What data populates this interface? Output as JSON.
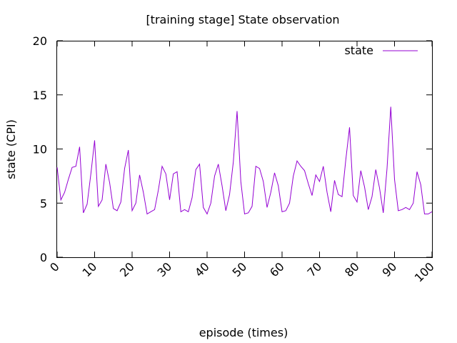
{
  "chart_data": {
    "type": "line",
    "title": "[training stage] State observation",
    "xlabel": "episode (times)",
    "ylabel": "state (CPI)",
    "xlim": [
      0,
      100
    ],
    "ylim": [
      0,
      20
    ],
    "xticks": [
      0,
      10,
      20,
      30,
      40,
      50,
      60,
      70,
      80,
      90,
      100
    ],
    "xtick_labels": [
      "0",
      "10",
      "20",
      "30",
      "40",
      "50",
      "60",
      "70",
      "80",
      "90",
      "100"
    ],
    "yticks": [
      0,
      5,
      10,
      15,
      20
    ],
    "ytick_labels": [
      "0",
      "5",
      "10",
      "15",
      "20"
    ],
    "grid": false,
    "legend_position": "top-right",
    "series": [
      {
        "name": "state",
        "color": "#9400d3",
        "x": [
          0,
          1,
          2,
          3,
          4,
          5,
          6,
          7,
          8,
          9,
          10,
          11,
          12,
          13,
          14,
          15,
          16,
          17,
          18,
          19,
          20,
          21,
          22,
          23,
          24,
          25,
          26,
          27,
          28,
          29,
          30,
          31,
          32,
          33,
          34,
          35,
          36,
          37,
          38,
          39,
          40,
          41,
          42,
          43,
          44,
          45,
          46,
          47,
          48,
          49,
          50,
          51,
          52,
          53,
          54,
          55,
          56,
          57,
          58,
          59,
          60,
          61,
          62,
          63,
          64,
          65,
          66,
          67,
          68,
          69,
          70,
          71,
          72,
          73,
          74,
          75,
          76,
          77,
          78,
          79,
          80,
          81,
          82,
          83,
          84,
          85,
          86,
          87,
          88,
          89,
          90,
          91,
          92,
          93,
          94,
          95,
          96,
          97,
          98,
          99,
          100
        ],
        "values": [
          8.3,
          5.3,
          6.0,
          7.2,
          8.3,
          8.4,
          10.2,
          4.1,
          4.9,
          7.7,
          10.8,
          4.7,
          5.3,
          8.6,
          6.9,
          4.5,
          4.3,
          5.1,
          8.2,
          9.9,
          4.3,
          5.0,
          7.6,
          6.0,
          4.0,
          4.2,
          4.4,
          6.2,
          8.4,
          7.7,
          5.3,
          7.7,
          7.9,
          4.2,
          4.4,
          4.2,
          5.5,
          8.1,
          8.6,
          4.6,
          4.0,
          5.0,
          7.5,
          8.6,
          6.6,
          4.3,
          5.8,
          8.8,
          13.5,
          7.0,
          4.0,
          4.1,
          4.7,
          8.4,
          8.2,
          7.0,
          4.6,
          6.0,
          7.8,
          6.6,
          4.2,
          4.3,
          5.0,
          7.5,
          8.9,
          8.4,
          8.0,
          6.8,
          5.7,
          7.6,
          7.0,
          8.4,
          6.0,
          4.2,
          7.1,
          5.8,
          5.6,
          9.0,
          12.0,
          5.7,
          5.1,
          8.0,
          6.5,
          4.4,
          5.6,
          8.1,
          6.4,
          4.1,
          8.2,
          13.9,
          7.2,
          4.3,
          4.4,
          4.6,
          4.4,
          5.0,
          7.9,
          6.7,
          4.0,
          4.0,
          4.2
        ]
      }
    ]
  }
}
